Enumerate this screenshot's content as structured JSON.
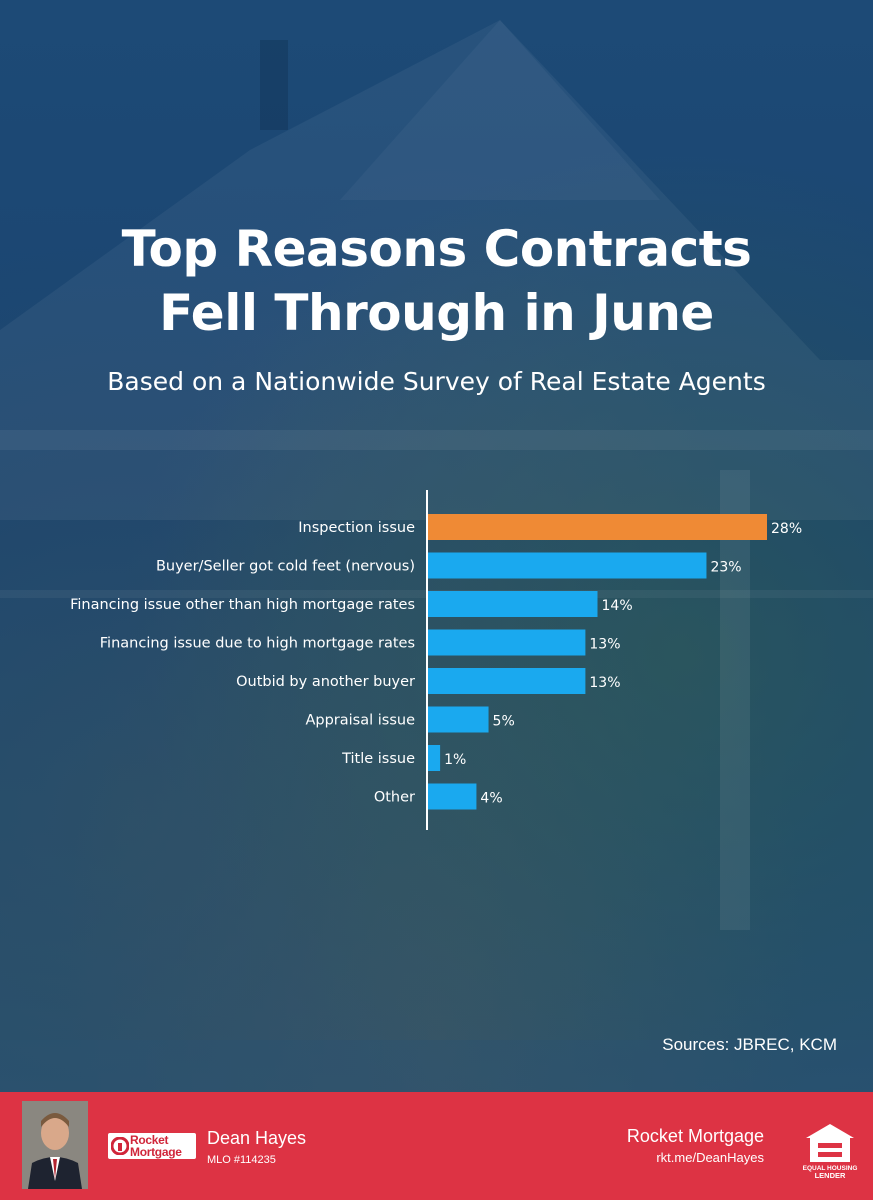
{
  "title_line1": "Top Reasons Contracts",
  "title_line2": "Fell Through in June",
  "subtitle": "Based on a Nationwide Survey of Real Estate Agents",
  "sources": "Sources: JBREC, KCM",
  "colors": {
    "highlight": "#ef8a35",
    "bar": "#1aa9ef",
    "footer": "#dd3344",
    "background": "#1a4470"
  },
  "chart_data": {
    "type": "bar",
    "orientation": "horizontal",
    "categories": [
      "Inspection issue",
      "Buyer/Seller got cold feet (nervous)",
      "Financing issue other than high mortgage rates",
      "Financing issue due to high mortgage rates",
      "Outbid by another buyer",
      "Appraisal issue",
      "Title issue",
      "Other"
    ],
    "values": [
      28,
      23,
      14,
      13,
      13,
      5,
      1,
      4
    ],
    "value_labels": [
      "28%",
      "23%",
      "14%",
      "13%",
      "13%",
      "5%",
      "1%",
      "4%"
    ],
    "highlight_index": 0,
    "unit": "%",
    "grid": false,
    "legend": "none"
  },
  "footer": {
    "agent_name": "Dean Hayes",
    "mlo": "MLO #114235",
    "logo_text_line1": "Rocket",
    "logo_text_line2": "Mortgage",
    "brand": "Rocket Mortgage",
    "url": "rkt.me/DeanHayes",
    "ehl_line1": "EQUAL HOUSING",
    "ehl_line2": "LENDER",
    "photo_icon": "agent-photo",
    "ehl_icon": "equal-housing-lender-icon"
  }
}
